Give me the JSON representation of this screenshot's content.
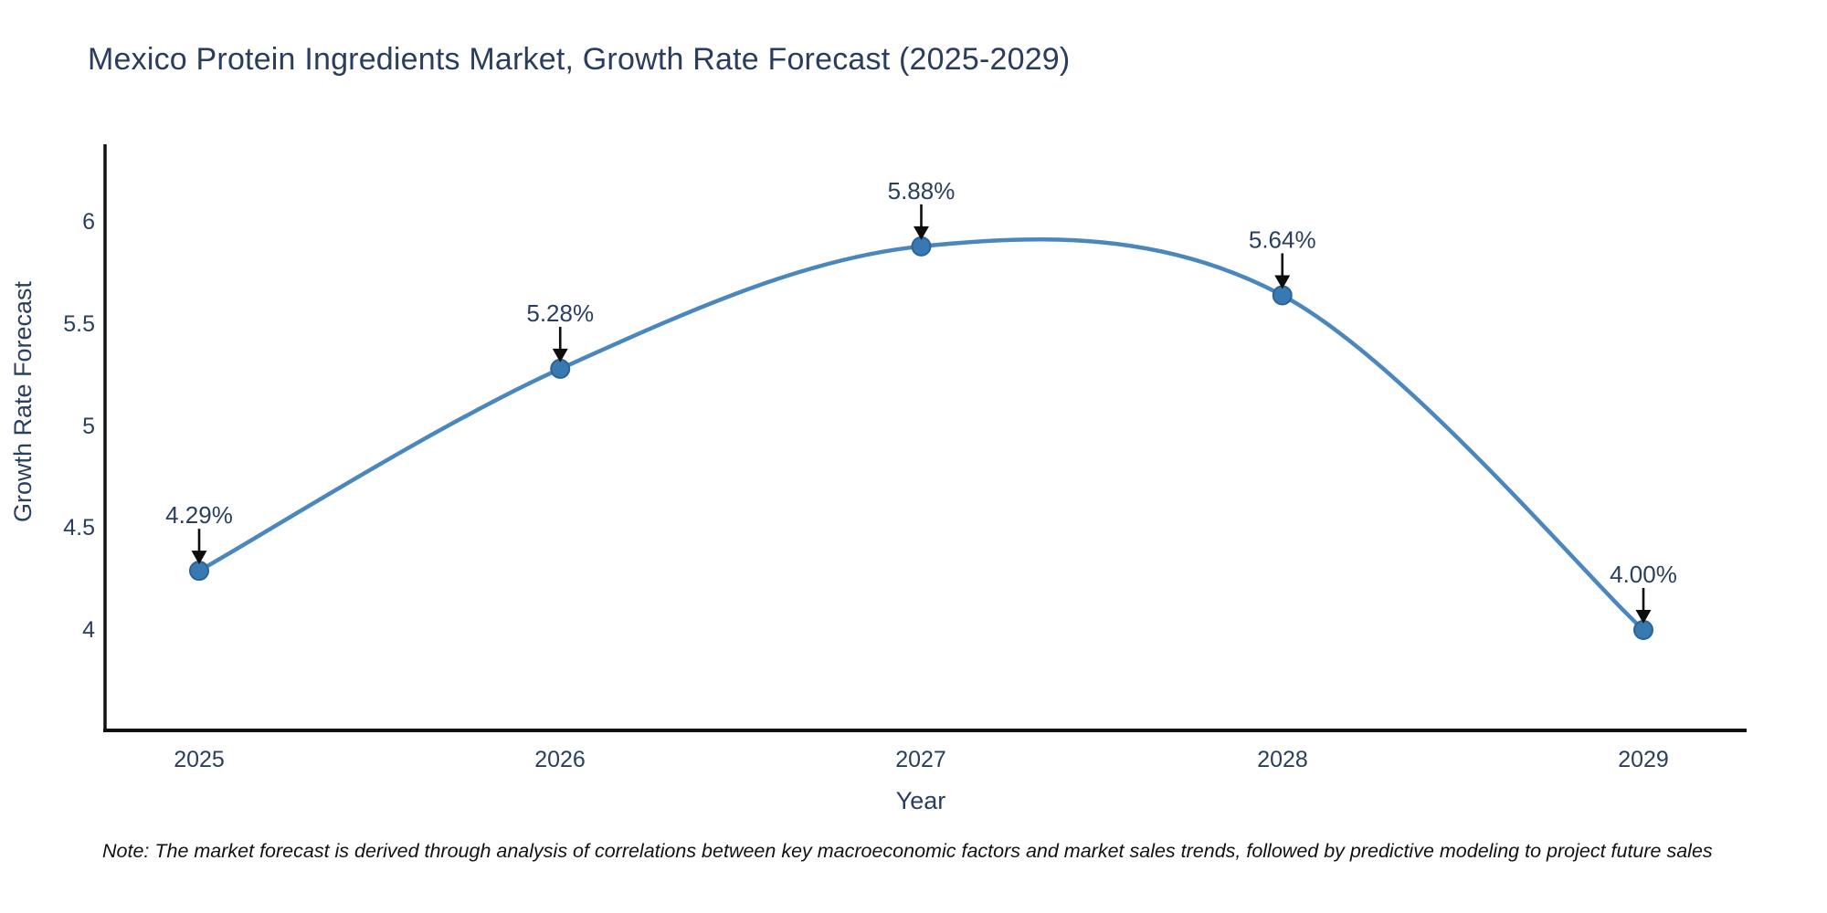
{
  "title": "Mexico Protein Ingredients Market, Growth Rate Forecast (2025-2029)",
  "note": "Note: The market forecast is derived through analysis of correlations between key macroeconomic factors and market sales trends, followed by predictive modeling to project future sales",
  "chart_data": {
    "type": "line",
    "title": "Mexico Protein Ingredients Market, Growth Rate Forecast (2025-2029)",
    "x": [
      2025,
      2026,
      2027,
      2028,
      2029
    ],
    "categories": [
      "2025",
      "2026",
      "2027",
      "2028",
      "2029"
    ],
    "values": [
      4.29,
      5.28,
      5.88,
      5.64,
      4.0
    ],
    "point_labels": [
      "4.29%",
      "5.28%",
      "5.88%",
      "5.64%",
      "4.00%"
    ],
    "xlabel": "Year",
    "ylabel": "Growth Rate Forecast",
    "ytick_labels": [
      "4",
      "4.5",
      "5",
      "5.5",
      "6"
    ],
    "yticks": [
      4,
      4.5,
      5,
      5.5,
      6
    ],
    "ylim": [
      3.5,
      6.4
    ],
    "xlim": [
      2024.7,
      2029.3
    ],
    "grid": false,
    "legend": false,
    "line_style": "spline",
    "colors": {
      "line": "#4a87bd",
      "marker_fill": "#3879b2",
      "marker_stroke": "#2b639a",
      "annotation_text": "#2a3f5f",
      "arrow": "#0d0d0d",
      "axis_line": "#111111",
      "tick_text": "#2a3f5f",
      "title_text": "#2b3d5f"
    }
  }
}
